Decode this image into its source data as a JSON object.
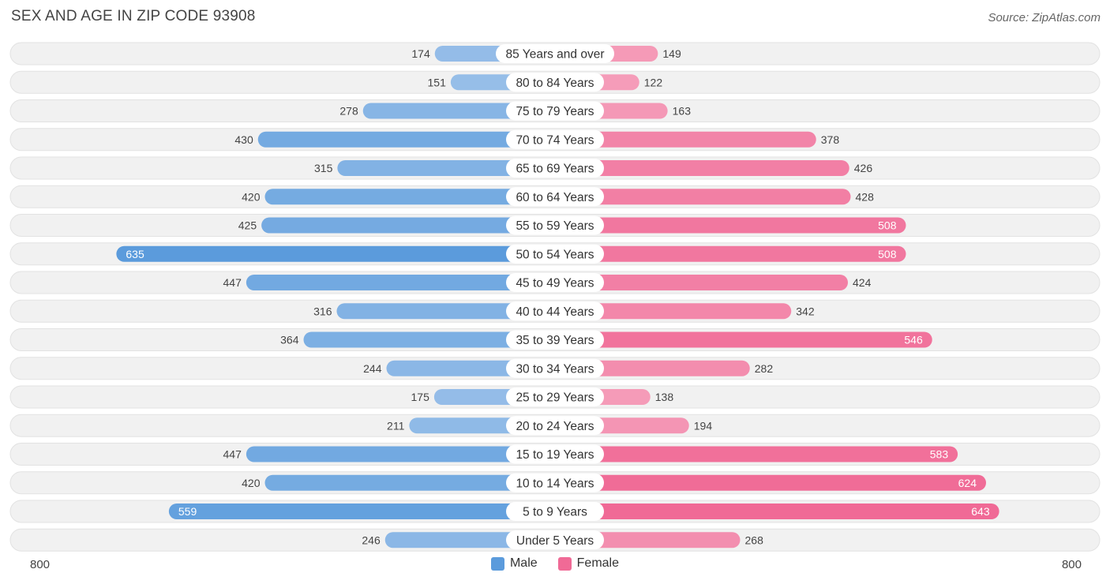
{
  "title": "SEX AND AGE IN ZIP CODE 93908",
  "source": "Source: ZipAtlas.com",
  "colors": {
    "male": "#5b9bdc",
    "male_light": "#a9c9ec",
    "female": "#f06a96",
    "female_light": "#f6a8c1",
    "row_bg": "#f1f1f1"
  },
  "legend": {
    "male": "Male",
    "female": "Female"
  },
  "axis": {
    "left_label": "800",
    "right_label": "800"
  },
  "chart_data": {
    "type": "bar",
    "orientation": "horizontal-diverging",
    "xlim": [
      -800,
      800
    ],
    "categories": [
      "85 Years and over",
      "80 to 84 Years",
      "75 to 79 Years",
      "70 to 74 Years",
      "65 to 69 Years",
      "60 to 64 Years",
      "55 to 59 Years",
      "50 to 54 Years",
      "45 to 49 Years",
      "40 to 44 Years",
      "35 to 39 Years",
      "30 to 34 Years",
      "25 to 29 Years",
      "20 to 24 Years",
      "15 to 19 Years",
      "10 to 14 Years",
      "5 to 9 Years",
      "Under 5 Years"
    ],
    "series": [
      {
        "name": "Male",
        "values": [
          174,
          151,
          278,
          430,
          315,
          420,
          425,
          635,
          447,
          316,
          364,
          244,
          175,
          211,
          447,
          420,
          559,
          246
        ]
      },
      {
        "name": "Female",
        "values": [
          149,
          122,
          163,
          378,
          426,
          428,
          508,
          508,
          424,
          342,
          546,
          282,
          138,
          194,
          583,
          624,
          643,
          268
        ]
      }
    ]
  }
}
